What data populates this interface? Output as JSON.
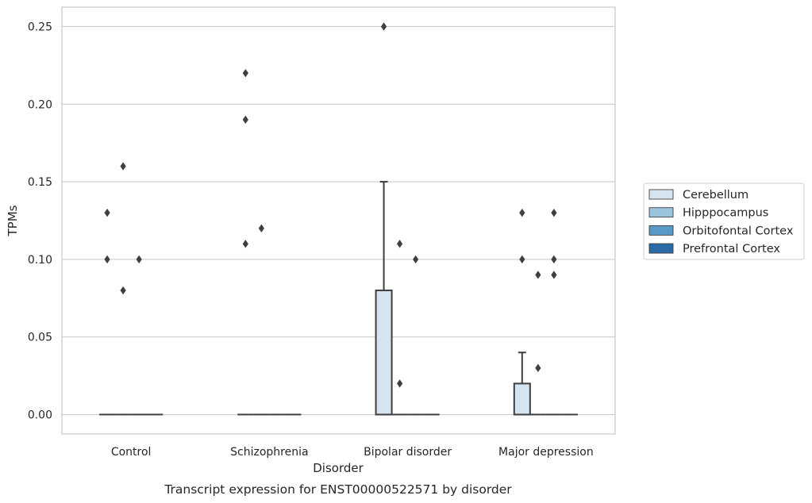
{
  "chart_data": {
    "type": "box",
    "xlabel": "Disorder",
    "ylabel": "TPMs",
    "caption": "Transcript expression for ENST00000522571 by disorder",
    "ylim": [
      -0.0125,
      0.2625
    ],
    "yticks": [
      0.0,
      0.05,
      0.1,
      0.15,
      0.2,
      0.25
    ],
    "ytick_labels": [
      "0.00",
      "0.05",
      "0.10",
      "0.15",
      "0.20",
      "0.25"
    ],
    "grid": "horizontal",
    "legend_position": "right",
    "categories": [
      "Control",
      "Schizophrenia",
      "Bipolar disorder",
      "Major depression"
    ],
    "series": [
      {
        "name": "Cerebellum",
        "color": "#d6e4f2",
        "boxes": [
          {
            "q1": 0.0,
            "median": 0.0,
            "q3": 0.0,
            "whisker_low": 0.0,
            "whisker_high": 0.0,
            "outliers": [
              0.13,
              0.1
            ]
          },
          {
            "q1": 0.0,
            "median": 0.0,
            "q3": 0.0,
            "whisker_low": 0.0,
            "whisker_high": 0.0,
            "outliers": [
              0.22,
              0.19,
              0.11
            ]
          },
          {
            "q1": 0.0,
            "median": 0.0,
            "q3": 0.08,
            "whisker_low": 0.0,
            "whisker_high": 0.15,
            "outliers": [
              0.25
            ]
          },
          {
            "q1": 0.0,
            "median": 0.0,
            "q3": 0.02,
            "whisker_low": 0.0,
            "whisker_high": 0.04,
            "outliers": [
              0.13,
              0.1
            ]
          }
        ]
      },
      {
        "name": "Hipppocampus",
        "color": "#9ac3de",
        "boxes": [
          {
            "q1": 0.0,
            "median": 0.0,
            "q3": 0.0,
            "whisker_low": 0.0,
            "whisker_high": 0.0,
            "outliers": [
              0.16,
              0.08
            ]
          },
          {
            "q1": 0.0,
            "median": 0.0,
            "q3": 0.0,
            "whisker_low": 0.0,
            "whisker_high": 0.0,
            "outliers": [
              0.12
            ]
          },
          {
            "q1": 0.0,
            "median": 0.0,
            "q3": 0.0,
            "whisker_low": 0.0,
            "whisker_high": 0.0,
            "outliers": [
              0.11,
              0.02
            ]
          },
          {
            "q1": 0.0,
            "median": 0.0,
            "q3": 0.0,
            "whisker_low": 0.0,
            "whisker_high": 0.0,
            "outliers": [
              0.09,
              0.03
            ]
          }
        ]
      },
      {
        "name": "Orbitofontal Cortex",
        "color": "#5a9ac9",
        "boxes": [
          {
            "q1": 0.0,
            "median": 0.0,
            "q3": 0.0,
            "whisker_low": 0.0,
            "whisker_high": 0.0,
            "outliers": [
              0.1
            ]
          },
          {
            "q1": 0.0,
            "median": 0.0,
            "q3": 0.0,
            "whisker_low": 0.0,
            "whisker_high": 0.0,
            "outliers": []
          },
          {
            "q1": 0.0,
            "median": 0.0,
            "q3": 0.0,
            "whisker_low": 0.0,
            "whisker_high": 0.0,
            "outliers": [
              0.1
            ]
          },
          {
            "q1": 0.0,
            "median": 0.0,
            "q3": 0.0,
            "whisker_low": 0.0,
            "whisker_high": 0.0,
            "outliers": [
              0.13,
              0.1,
              0.09
            ]
          }
        ]
      },
      {
        "name": "Prefrontal Cortex",
        "color": "#2a6aa6",
        "boxes": [
          {
            "q1": 0.0,
            "median": 0.0,
            "q3": 0.0,
            "whisker_low": 0.0,
            "whisker_high": 0.0,
            "outliers": []
          },
          {
            "q1": 0.0,
            "median": 0.0,
            "q3": 0.0,
            "whisker_low": 0.0,
            "whisker_high": 0.0,
            "outliers": []
          },
          {
            "q1": 0.0,
            "median": 0.0,
            "q3": 0.0,
            "whisker_low": 0.0,
            "whisker_high": 0.0,
            "outliers": []
          },
          {
            "q1": 0.0,
            "median": 0.0,
            "q3": 0.0,
            "whisker_low": 0.0,
            "whisker_high": 0.0,
            "outliers": []
          }
        ]
      }
    ]
  },
  "colors": {
    "line": "#3f3f3f",
    "grid": "#cccccc",
    "frame": "#cccccc",
    "outlier": "#3f3f3f"
  }
}
